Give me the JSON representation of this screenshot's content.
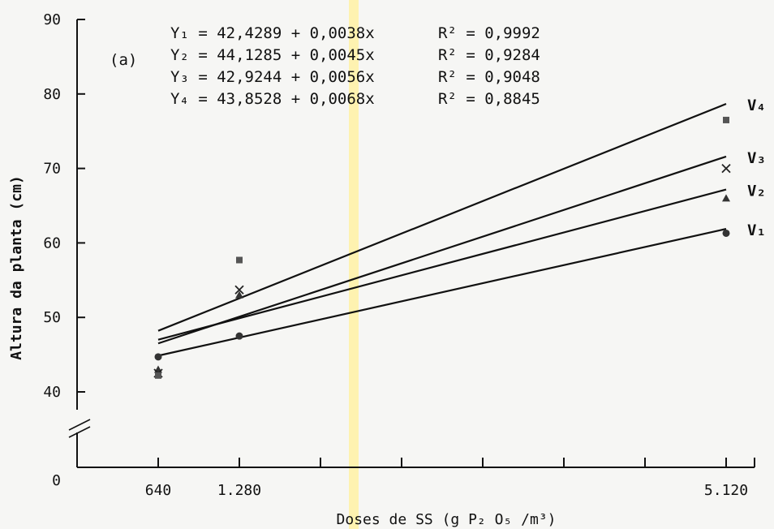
{
  "chart_data": {
    "type": "scatter",
    "title": "",
    "panel_label": "(a)",
    "xlabel": "Doses de SS (g P₂ O₅ /m³)",
    "ylabel": "Altura da planta (cm)",
    "xlim": [
      0,
      6000
    ],
    "ylim": [
      40,
      90
    ],
    "y_zero_label": "0",
    "x_tick_labels": [
      {
        "value": 640,
        "label": "640"
      },
      {
        "value": 1280,
        "label": "1.280"
      },
      {
        "value": 5120,
        "label": "5.120"
      }
    ],
    "x_minor_ticks": [
      640,
      1280,
      1920,
      2560,
      3200,
      3840,
      4480,
      5120,
      5760
    ],
    "y_ticks": [
      40,
      50,
      60,
      70,
      80,
      90
    ],
    "grid": false,
    "equations": [
      {
        "y": "Y₁ = 42,4289 + 0,0038x",
        "r2": "R² = 0,9992"
      },
      {
        "y": "Y₂ = 44,1285 + 0,0045x",
        "r2": "R² = 0,9284"
      },
      {
        "y": "Y₃ = 42,9244 + 0,0056x",
        "r2": "R² = 0,9048"
      },
      {
        "y": "Y₄ = 43,8528 + 0,0068x",
        "r2": "R² = 0,8845"
      }
    ],
    "series": [
      {
        "name": "V₁",
        "marker": "circle",
        "intercept": 42.4289,
        "slope": 0.0038,
        "x": [
          640,
          1280,
          5120
        ],
        "y": [
          44.7,
          47.5,
          61.3
        ]
      },
      {
        "name": "V₂",
        "marker": "triangle",
        "intercept": 44.1285,
        "slope": 0.0045,
        "x": [
          640,
          1280,
          5120
        ],
        "y": [
          43.0,
          53.0,
          66.0
        ]
      },
      {
        "name": "V₃",
        "marker": "x",
        "intercept": 42.9244,
        "slope": 0.0056,
        "x": [
          640,
          1280,
          5120
        ],
        "y": [
          42.5,
          53.7,
          70.0
        ]
      },
      {
        "name": "V₄",
        "marker": "square",
        "intercept": 43.8528,
        "slope": 0.0068,
        "x": [
          640,
          1280,
          5120
        ],
        "y": [
          42.2,
          57.7,
          76.5
        ]
      }
    ]
  }
}
